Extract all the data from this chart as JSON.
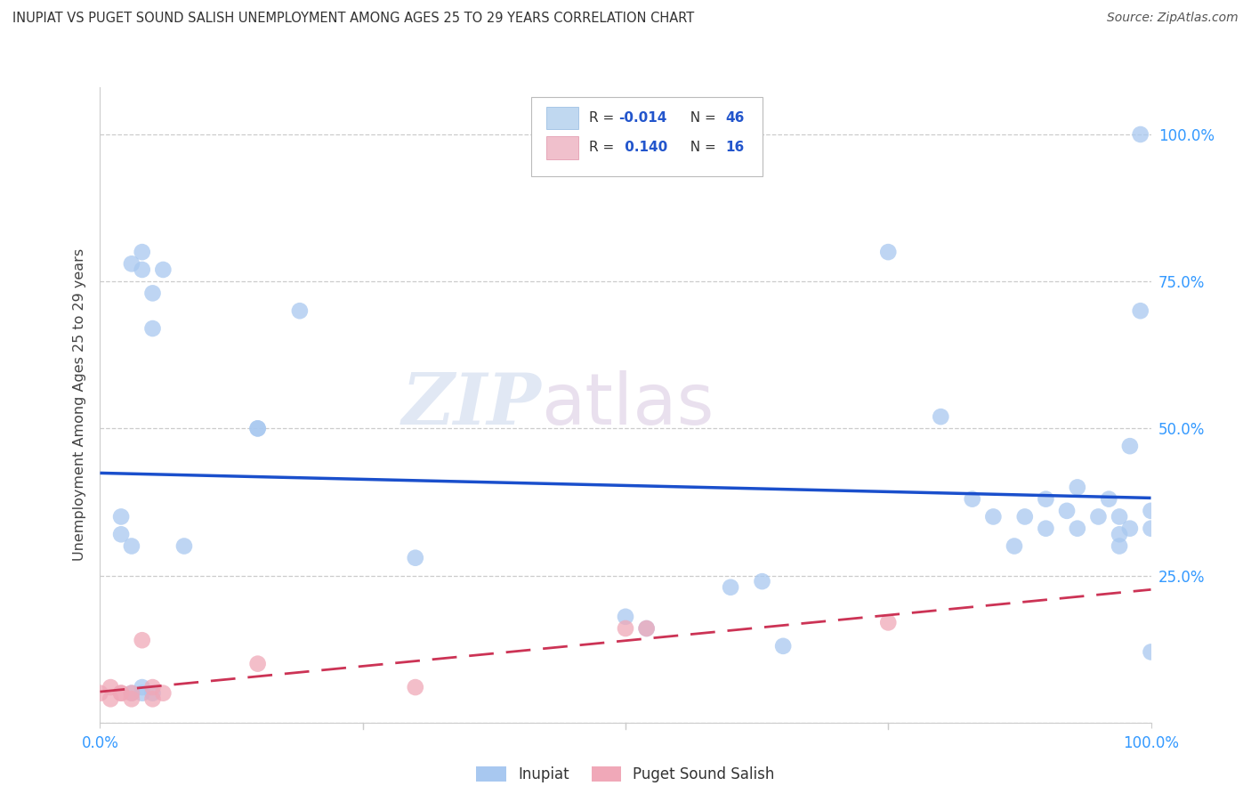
{
  "title": "INUPIAT VS PUGET SOUND SALISH UNEMPLOYMENT AMONG AGES 25 TO 29 YEARS CORRELATION CHART",
  "source": "Source: ZipAtlas.com",
  "ylabel": "Unemployment Among Ages 25 to 29 years",
  "ytick_labels": [
    "",
    "25.0%",
    "50.0%",
    "75.0%",
    "100.0%"
  ],
  "inupiat_R": -0.014,
  "inupiat_N": 46,
  "salish_R": 0.14,
  "salish_N": 16,
  "watermark_zip": "ZIP",
  "watermark_atlas": "atlas",
  "inupiat_color": "#a8c8f0",
  "salish_color": "#f0a8b8",
  "inupiat_line_color": "#1a4fcc",
  "salish_line_color": "#cc3355",
  "inupiat_points_x": [
    0.02,
    0.03,
    0.04,
    0.04,
    0.05,
    0.05,
    0.06,
    0.08,
    0.02,
    0.03,
    0.03,
    0.04,
    0.04,
    0.05,
    0.15,
    0.15,
    0.19,
    0.3,
    0.5,
    0.52,
    0.6,
    0.63,
    0.65,
    0.75,
    0.8,
    0.83,
    0.85,
    0.87,
    0.88,
    0.9,
    0.9,
    0.92,
    0.93,
    0.93,
    0.95,
    0.96,
    0.97,
    0.97,
    0.97,
    0.98,
    0.98,
    0.99,
    0.99,
    1.0,
    1.0,
    1.0
  ],
  "inupiat_points_y": [
    0.35,
    0.78,
    0.8,
    0.77,
    0.73,
    0.67,
    0.77,
    0.3,
    0.32,
    0.3,
    0.05,
    0.05,
    0.06,
    0.05,
    0.5,
    0.5,
    0.7,
    0.28,
    0.18,
    0.16,
    0.23,
    0.24,
    0.13,
    0.8,
    0.52,
    0.38,
    0.35,
    0.3,
    0.35,
    0.38,
    0.33,
    0.36,
    0.4,
    0.33,
    0.35,
    0.38,
    0.35,
    0.32,
    0.3,
    0.33,
    0.47,
    0.7,
    1.0,
    0.36,
    0.33,
    0.12
  ],
  "salish_points_x": [
    0.0,
    0.01,
    0.01,
    0.02,
    0.02,
    0.03,
    0.03,
    0.04,
    0.05,
    0.05,
    0.06,
    0.15,
    0.3,
    0.5,
    0.52,
    0.75
  ],
  "salish_points_y": [
    0.05,
    0.06,
    0.04,
    0.05,
    0.05,
    0.05,
    0.04,
    0.14,
    0.06,
    0.04,
    0.05,
    0.1,
    0.06,
    0.16,
    0.16,
    0.17
  ]
}
